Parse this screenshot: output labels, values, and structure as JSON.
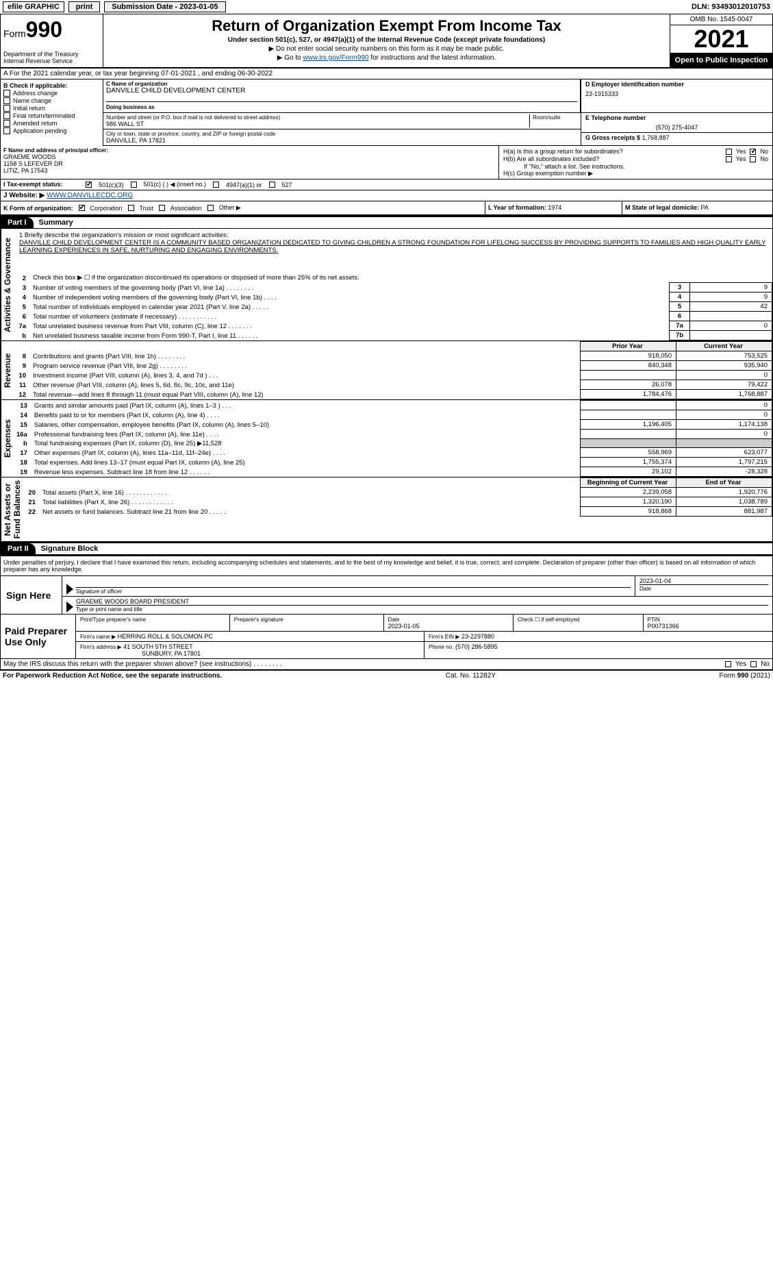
{
  "topbar": {
    "efile": "efile GRAPHIC",
    "print": "print",
    "submission": "Submission Date - 2023-01-05",
    "dln": "DLN: 93493012010753"
  },
  "header": {
    "form_prefix": "Form",
    "form_no": "990",
    "title": "Return of Organization Exempt From Income Tax",
    "sub1": "Under section 501(c), 527, or 4947(a)(1) of the Internal Revenue Code (except private foundations)",
    "sub2": "▶ Do not enter social security numbers on this form as it may be made public.",
    "sub3_pre": "▶ Go to ",
    "sub3_link": "www.irs.gov/Form990",
    "sub3_post": " for instructions and the latest information.",
    "dept": "Department of the Treasury\nInternal Revenue Service",
    "omb": "OMB No. 1545-0047",
    "year": "2021",
    "inspection": "Open to Public Inspection"
  },
  "rowA": "A For the 2021 calendar year, or tax year beginning 07-01-2021    , and ending 06-30-2022",
  "boxB": {
    "label": "B Check if applicable:",
    "opts": [
      "Address change",
      "Name change",
      "Initial return",
      "Final return/terminated",
      "Amended return",
      "Application pending"
    ]
  },
  "boxC": {
    "name_label": "C Name of organization",
    "name": "DANVILLE CHILD DEVELOPMENT CENTER",
    "dba_label": "Doing business as",
    "dba": "",
    "street_label": "Number and street (or P.O. box if mail is not delivered to street address)",
    "room_label": "Room/suite",
    "street": "986 WALL ST",
    "city_label": "City or town, state or province, country, and ZIP or foreign postal code",
    "city": "DANVILLE, PA  17821"
  },
  "boxD": {
    "ein_label": "D Employer identification number",
    "ein": "23-1915333",
    "phone_label": "E Telephone number",
    "phone": "(570) 275-4047",
    "gross_label": "G Gross receipts $",
    "gross": "1,768,887"
  },
  "boxF": {
    "label": "F Name and address of principal officer:",
    "name": "GRAEME WOODS",
    "addr1": "1158 S LEFEVER DR",
    "addr2": "LITIZ, PA  17543"
  },
  "boxH": {
    "ha": "H(a)  Is this a group return for subordinates?",
    "hb": "H(b)  Are all subordinates included?",
    "hb_note": "If \"No,\" attach a list. See instructions.",
    "hc": "H(c)  Group exemption number ▶",
    "yes": "Yes",
    "no": "No"
  },
  "rowI": {
    "label": "I  Tax-exempt status:",
    "o1": "501(c)(3)",
    "o2": "501(c) (  ) ◀ (insert no.)",
    "o3": "4947(a)(1) or",
    "o4": "527"
  },
  "rowJ": {
    "label": "J  Website: ▶",
    "val": "WWW.DANVILLECDC.ORG"
  },
  "rowK": {
    "label": "K Form of organization:",
    "o1": "Corporation",
    "o2": "Trust",
    "o3": "Association",
    "o4": "Other ▶"
  },
  "rowL": {
    "label": "L Year of formation:",
    "val": "1974"
  },
  "rowM": {
    "label": "M State of legal domicile:",
    "val": "PA"
  },
  "part1": {
    "tag": "Part I",
    "title": "Summary"
  },
  "vert": {
    "ag": "Activities & Governance",
    "rev": "Revenue",
    "exp": "Expenses",
    "na": "Net Assets or\nFund Balances"
  },
  "mission": {
    "q": "1  Briefly describe the organization's mission or most significant activities:",
    "text": "DANVILLE CHILD DEVELOPMENT CENTER IS A COMMUNITY BASED ORGANIZATION DEDICATED TO GIVING CHILDREN A STRONG FOUNDATION FOR LIFELONG SUCCESS BY PROVIDING SUPPORTS TO FAMILIES AND HIGH QUALITY EARLY LEARNING EXPERIENCES IN SAFE, NURTURING AND ENGAGING ENVIRONMENTS."
  },
  "ag_lines": [
    {
      "n": "2",
      "d": "Check this box ▶ ☐ if the organization discontinued its operations or disposed of more than 25% of its net assets.",
      "box": "",
      "v": ""
    },
    {
      "n": "3",
      "d": "Number of voting members of the governing body (Part VI, line 1a)   .    .    .    .    .    .    .    .",
      "box": "3",
      "v": "9"
    },
    {
      "n": "4",
      "d": "Number of independent voting members of the governing body (Part VI, line 1b)    .    .    .    .",
      "box": "4",
      "v": "9"
    },
    {
      "n": "5",
      "d": "Total number of individuals employed in calendar year 2021 (Part V, line 2a)    .    .    .    .    .",
      "box": "5",
      "v": "42"
    },
    {
      "n": "6",
      "d": "Total number of volunteers (estimate if necessary)    .    .    .    .    .    .    .    .    .    .    .",
      "box": "6",
      "v": ""
    },
    {
      "n": "7a",
      "d": "Total unrelated business revenue from Part VIII, column (C), line 12    .    .    .    .    .    .    .",
      "box": "7a",
      "v": "0"
    },
    {
      "n": "b",
      "d": "Net unrelated business taxable income from Form 990-T, Part I, line 11    .    .    .    .    .    .",
      "box": "7b",
      "v": ""
    }
  ],
  "py_cy": {
    "py": "Prior Year",
    "cy": "Current Year"
  },
  "rev_lines": [
    {
      "n": "8",
      "d": "Contributions and grants (Part VIII, line 1h)    .    .    .    .    .    .    .    .",
      "py": "918,050",
      "cy": "753,525"
    },
    {
      "n": "9",
      "d": "Program service revenue (Part VIII, line 2g)    .    .    .    .    .    .    .    .",
      "py": "840,348",
      "cy": "935,940"
    },
    {
      "n": "10",
      "d": "Investment income (Part VIII, column (A), lines 3, 4, and 7d )    .    .    .",
      "py": "",
      "cy": "0"
    },
    {
      "n": "11",
      "d": "Other revenue (Part VIII, column (A), lines 5, 6d, 8c, 9c, 10c, and 11e)",
      "py": "26,078",
      "cy": "79,422"
    },
    {
      "n": "12",
      "d": "Total revenue—add lines 8 through 11 (must equal Part VIII, column (A), line 12)",
      "py": "1,784,476",
      "cy": "1,768,887"
    }
  ],
  "exp_lines": [
    {
      "n": "13",
      "d": "Grants and similar amounts paid (Part IX, column (A), lines 1–3 )   .    .    .",
      "py": "",
      "cy": "0"
    },
    {
      "n": "14",
      "d": "Benefits paid to or for members (Part IX, column (A), line 4)    .    .    .    .",
      "py": "",
      "cy": "0"
    },
    {
      "n": "15",
      "d": "Salaries, other compensation, employee benefits (Part IX, column (A), lines 5–10)",
      "py": "1,196,405",
      "cy": "1,174,138"
    },
    {
      "n": "16a",
      "d": "Professional fundraising fees (Part IX, column (A), line 11e)    .    .    .    .",
      "py": "",
      "cy": "0"
    },
    {
      "n": "b",
      "d": "Total fundraising expenses (Part IX, column (D), line 25) ▶11,528",
      "py": "shade",
      "cy": "shade"
    },
    {
      "n": "17",
      "d": "Other expenses (Part IX, column (A), lines 11a–11d, 11f–24e)    .    .    .    .",
      "py": "558,969",
      "cy": "623,077"
    },
    {
      "n": "18",
      "d": "Total expenses. Add lines 13–17 (must equal Part IX, column (A), line 25)",
      "py": "1,755,374",
      "cy": "1,797,215"
    },
    {
      "n": "19",
      "d": "Revenue less expenses. Subtract line 18 from line 12   .    .    .    .    .    .",
      "py": "29,102",
      "cy": "-28,328"
    }
  ],
  "na_hdr": {
    "b": "Beginning of Current Year",
    "e": "End of Year"
  },
  "na_lines": [
    {
      "n": "20",
      "d": "Total assets (Part X, line 16)    .    .    .    .    .    .    .    .    .    .    .    .",
      "b": "2,239,058",
      "e": "1,920,776"
    },
    {
      "n": "21",
      "d": "Total liabilities (Part X, line 26)    .    .    .    .    .    .    .    .    .    .    .    .",
      "b": "1,320,190",
      "e": "1,038,789"
    },
    {
      "n": "22",
      "d": "Net assets or fund balances. Subtract line 21 from line 20   .    .    .    .    .",
      "b": "918,868",
      "e": "881,987"
    }
  ],
  "part2": {
    "tag": "Part II",
    "title": "Signature Block"
  },
  "sig": {
    "intro": "Under penalties of perjury, I declare that I have examined this return, including accompanying schedules and statements, and to the best of my knowledge and belief, it is true, correct, and complete. Declaration of preparer (other than officer) is based on all information of which preparer has any knowledge.",
    "sign_here": "Sign Here",
    "sig_label": "Signature of officer",
    "date_label": "Date",
    "date": "2023-01-04",
    "name": "GRAEME WOODS BOARD PRESIDENT",
    "name_label": "Type or print name and title"
  },
  "paid": {
    "left": "Paid Preparer Use Only",
    "l1": {
      "a": "Print/Type preparer's name",
      "b": "Preparer's signature",
      "c_lab": "Date",
      "c": "2023-01-05",
      "d_lab": "Check ☐ if self-employed",
      "e_lab": "PTIN",
      "e": "P00731366"
    },
    "l2": {
      "a_lab": "Firm's name    ▶",
      "a": "HERRING ROLL & SOLOMON PC",
      "b_lab": "Firm's EIN ▶",
      "b": "23-2297880"
    },
    "l3": {
      "a_lab": "Firm's address ▶",
      "a1": "41 SOUTH 5TH STREET",
      "a2": "SUNBURY, PA  17801",
      "b_lab": "Phone no.",
      "b": "(570) 286-5895"
    }
  },
  "may_irs": "May the IRS discuss this return with the preparer shown above? (see instructions)    .    .    .    .    .    .    .    .",
  "footer": {
    "left": "For Paperwork Reduction Act Notice, see the separate instructions.",
    "mid": "Cat. No. 11282Y",
    "right_pre": "Form ",
    "right_b": "990",
    "right_post": " (2021)"
  }
}
